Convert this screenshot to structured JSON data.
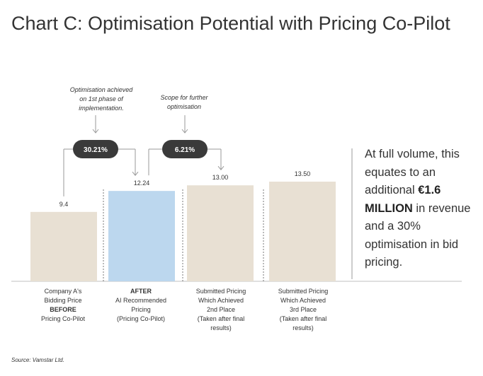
{
  "title": "Chart C: Optimisation Potential with Pricing Co-Pilot",
  "source": "Source: Vamstar Ltd.",
  "side_text": {
    "line1": "At full volume, this equates to an additional",
    "highlight": "€1.6 MILLION",
    "line2": "in revenue and a 30% optimisation in bid pricing."
  },
  "annotations": {
    "first": {
      "text_l1": "Optimisation achieved",
      "text_l2": "on 1st phase of",
      "text_l3": "implementation.",
      "badge": "30.21%"
    },
    "second": {
      "text_l1": "Scope for further",
      "text_l2": "optimisation",
      "badge": "6.21%"
    }
  },
  "categories": [
    {
      "l1": "Company A's",
      "l2": "Bidding Price",
      "l3": "BEFORE",
      "l4": "Pricing Co-Pilot",
      "l5": ""
    },
    {
      "l1": "AFTER",
      "l2": "AI Recommended",
      "l3": "Pricing",
      "l4": "(Pricing Co-Pilot)",
      "l5": ""
    },
    {
      "l1": "Submitted Pricing",
      "l2": "Which Achieved",
      "l3": "2nd Place",
      "l4": "(Taken after final",
      "l5": "results)"
    },
    {
      "l1": "Submitted Pricing",
      "l2": "Which Achieved",
      "l3": "3rd Place",
      "l4": "(Taken after final",
      "l5": "results)"
    }
  ],
  "colors": {
    "bar_default": "#e8e0d3",
    "bar_highlight": "#bcd7ee",
    "badge": "#3a3a3a",
    "badge_text": "#ffffff",
    "line": "#9a9a9a"
  },
  "chart_data": {
    "type": "bar",
    "title": "Chart C: Optimisation Potential with Pricing Co-Pilot",
    "categories": [
      "Company A's Bidding Price BEFORE Pricing Co-Pilot",
      "AFTER AI Recommended Pricing (Pricing Co-Pilot)",
      "Submitted Pricing Which Achieved 2nd Place (Taken after final results)",
      "Submitted Pricing Which Achieved 3rd Place (Taken after final results)"
    ],
    "values": [
      9.4,
      12.24,
      13.0,
      13.5
    ],
    "value_labels": [
      "9.4",
      "12.24",
      "13.00",
      "13.50"
    ],
    "highlight_index": 1,
    "xlabel": "",
    "ylabel": "",
    "ylim": [
      0,
      13.5
    ]
  }
}
